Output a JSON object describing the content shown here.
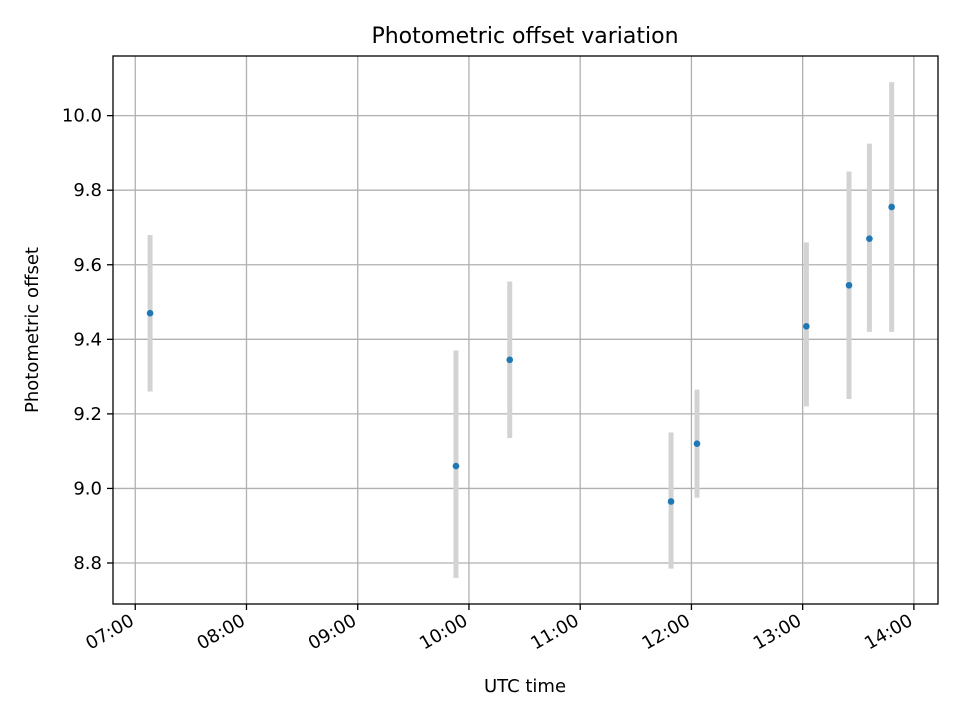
{
  "chart_data": {
    "type": "scatter",
    "title": "Photometric offset variation",
    "xlabel": "UTC time",
    "ylabel": "Photometric offset",
    "x_ticks": [
      "07:00",
      "08:00",
      "09:00",
      "10:00",
      "11:00",
      "12:00",
      "13:00",
      "14:00"
    ],
    "y_ticks": [
      "8.8",
      "9.0",
      "9.2",
      "9.4",
      "9.6",
      "9.8",
      "10.0"
    ],
    "xlim": [
      "06:48",
      "14:13"
    ],
    "ylim": [
      8.69,
      10.16
    ],
    "grid": true,
    "colors": {
      "point": "#1f77b4",
      "errorbar": "#d3d3d3",
      "grid": "#b0b0b0"
    },
    "points": [
      {
        "time": "07:08",
        "value": 9.47,
        "err_low": 9.26,
        "err_high": 9.68
      },
      {
        "time": "09:53",
        "value": 9.06,
        "err_low": 8.76,
        "err_high": 9.37
      },
      {
        "time": "10:22",
        "value": 9.345,
        "err_low": 9.135,
        "err_high": 9.555
      },
      {
        "time": "11:49",
        "value": 8.965,
        "err_low": 8.785,
        "err_high": 9.15
      },
      {
        "time": "12:03",
        "value": 9.12,
        "err_low": 8.975,
        "err_high": 9.265
      },
      {
        "time": "13:02",
        "value": 9.435,
        "err_low": 9.22,
        "err_high": 9.66
      },
      {
        "time": "13:25",
        "value": 9.545,
        "err_low": 9.24,
        "err_high": 9.85
      },
      {
        "time": "13:36",
        "value": 9.67,
        "err_low": 9.42,
        "err_high": 9.925
      },
      {
        "time": "13:48",
        "value": 9.755,
        "err_low": 9.42,
        "err_high": 10.09
      }
    ]
  }
}
